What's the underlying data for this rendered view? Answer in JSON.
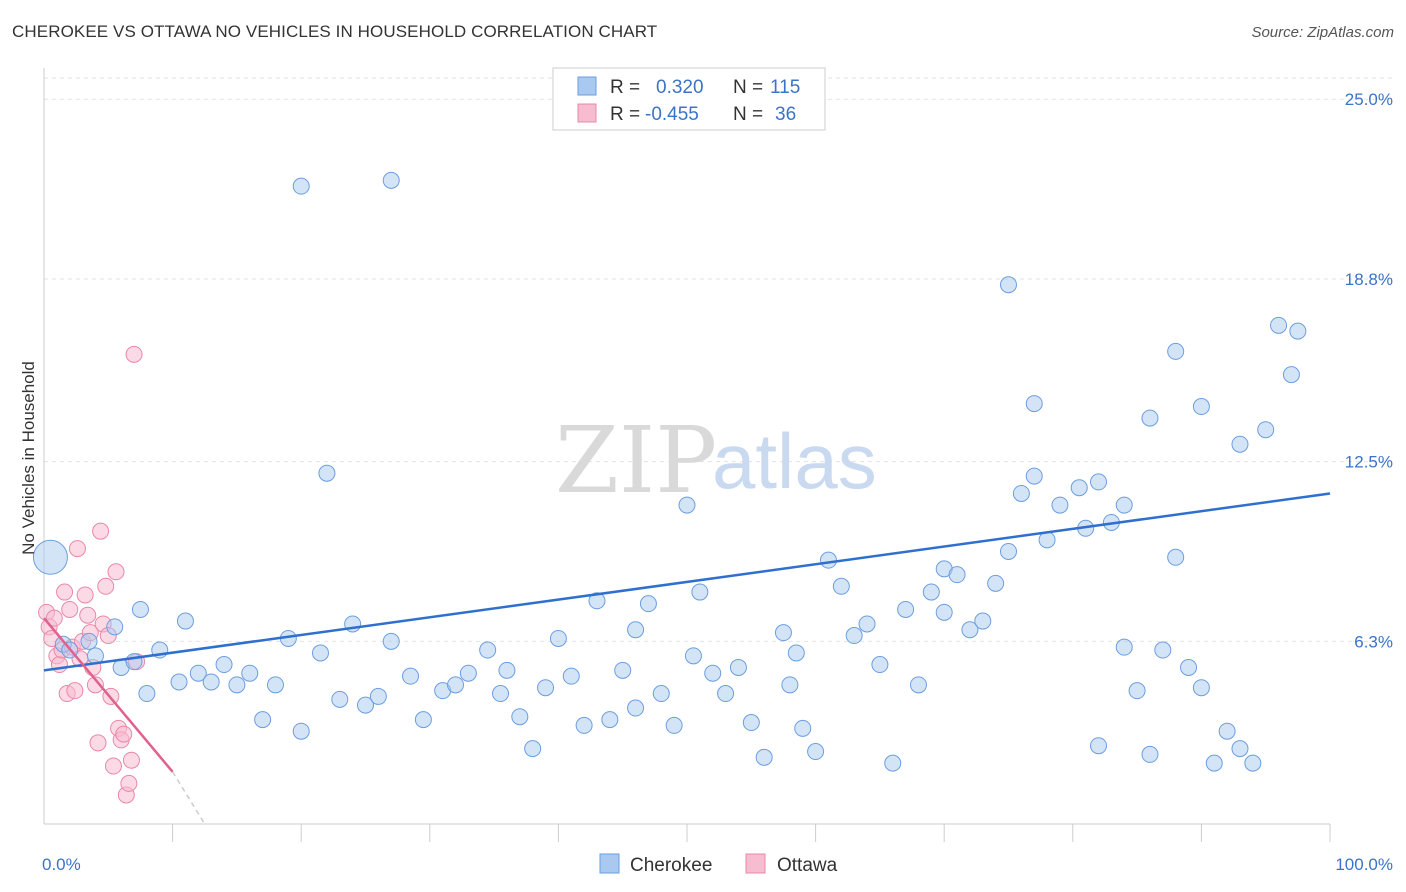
{
  "title": "CHEROKEE VS OTTAWA NO VEHICLES IN HOUSEHOLD CORRELATION CHART",
  "source": "Source: ZipAtlas.com",
  "watermark": {
    "zip": "ZIP",
    "atlas": "atlas"
  },
  "legend": {
    "r_label": "R =",
    "n_label": "N =",
    "rows": [
      {
        "name": "Cherokee",
        "r": "0.320",
        "n": "115",
        "fill": "#a9c9f0",
        "stroke": "#6b9ee0"
      },
      {
        "name": "Ottawa",
        "r": "-0.455",
        "n": "36",
        "fill": "#f7bcd0",
        "stroke": "#e888a8"
      }
    ]
  },
  "bottom_legend": [
    "Cherokee",
    "Ottawa"
  ],
  "colors": {
    "blue_line": "#2f6fcf",
    "pink_line": "#e0608e",
    "blue_dot": "#a9c9f0",
    "pink_dot": "#f7bcd0"
  },
  "chart_data": {
    "type": "scatter",
    "title": "CHEROKEE VS OTTAWA NO VEHICLES IN HOUSEHOLD CORRELATION CHART",
    "xlabel": "",
    "ylabel": "No Vehicles in Household",
    "xlim": [
      0,
      100
    ],
    "ylim": [
      0,
      25.8
    ],
    "x_tick_labels": [
      "0.0%",
      "100.0%"
    ],
    "y_ticks": [
      6.3,
      12.5,
      18.8,
      25.0
    ],
    "y_tick_labels": [
      "6.3%",
      "12.5%",
      "18.8%",
      "25.0%"
    ],
    "grid": true,
    "series": [
      {
        "name": "Cherokee",
        "points": [
          [
            0.5,
            9.2
          ],
          [
            1.5,
            6.2
          ],
          [
            2.0,
            6.0
          ],
          [
            3.5,
            6.3
          ],
          [
            4.0,
            5.8
          ],
          [
            5.5,
            6.8
          ],
          [
            6.0,
            5.4
          ],
          [
            7.0,
            5.6
          ],
          [
            7.5,
            7.4
          ],
          [
            8.0,
            4.5
          ],
          [
            9.0,
            6.0
          ],
          [
            10.5,
            4.9
          ],
          [
            11.0,
            7.0
          ],
          [
            12.0,
            5.2
          ],
          [
            13.0,
            4.9
          ],
          [
            14.0,
            5.5
          ],
          [
            15.0,
            4.8
          ],
          [
            16.0,
            5.2
          ],
          [
            17.0,
            3.6
          ],
          [
            18.0,
            4.8
          ],
          [
            19.0,
            6.4
          ],
          [
            20.0,
            3.2
          ],
          [
            21.5,
            5.9
          ],
          [
            22.0,
            12.1
          ],
          [
            23.0,
            4.3
          ],
          [
            24.0,
            6.9
          ],
          [
            25.0,
            4.1
          ],
          [
            26.0,
            4.4
          ],
          [
            27.0,
            6.3
          ],
          [
            28.5,
            5.1
          ],
          [
            29.5,
            3.6
          ],
          [
            31.0,
            4.6
          ],
          [
            32.0,
            4.8
          ],
          [
            33.0,
            5.2
          ],
          [
            34.5,
            6.0
          ],
          [
            35.5,
            4.5
          ],
          [
            36.0,
            5.3
          ],
          [
            37.0,
            3.7
          ],
          [
            38.0,
            2.6
          ],
          [
            39.0,
            4.7
          ],
          [
            40.0,
            6.4
          ],
          [
            41.0,
            5.1
          ],
          [
            42.0,
            3.4
          ],
          [
            43.0,
            7.7
          ],
          [
            44.0,
            3.6
          ],
          [
            45.0,
            5.3
          ],
          [
            46.0,
            4.0
          ],
          [
            47.0,
            7.6
          ],
          [
            48.0,
            4.5
          ],
          [
            49.0,
            3.4
          ],
          [
            50.5,
            5.8
          ],
          [
            51.0,
            8.0
          ],
          [
            52.0,
            5.2
          ],
          [
            53.0,
            4.5
          ],
          [
            54.0,
            5.4
          ],
          [
            55.0,
            3.5
          ],
          [
            56.0,
            2.3
          ],
          [
            57.5,
            6.6
          ],
          [
            58.5,
            5.9
          ],
          [
            59.0,
            3.3
          ],
          [
            60.0,
            2.5
          ],
          [
            61.0,
            9.1
          ],
          [
            62.0,
            8.2
          ],
          [
            63.0,
            6.5
          ],
          [
            64.0,
            6.9
          ],
          [
            65.0,
            5.5
          ],
          [
            66.0,
            2.1
          ],
          [
            67.0,
            7.4
          ],
          [
            68.0,
            4.8
          ],
          [
            69.0,
            8.0
          ],
          [
            70.0,
            8.8
          ],
          [
            71.0,
            8.6
          ],
          [
            72.0,
            6.7
          ],
          [
            73.0,
            7.0
          ],
          [
            74.0,
            8.3
          ],
          [
            75.0,
            9.4
          ],
          [
            76.0,
            11.4
          ],
          [
            77.0,
            12.0
          ],
          [
            78.0,
            9.8
          ],
          [
            79.0,
            11.0
          ],
          [
            80.5,
            11.6
          ],
          [
            81.0,
            10.2
          ],
          [
            82.0,
            2.7
          ],
          [
            83.0,
            10.4
          ],
          [
            84.0,
            6.1
          ],
          [
            85.0,
            4.6
          ],
          [
            86.0,
            2.4
          ],
          [
            87.0,
            6.0
          ],
          [
            88.0,
            9.2
          ],
          [
            89.0,
            5.4
          ],
          [
            90.0,
            4.7
          ],
          [
            91.0,
            2.1
          ],
          [
            92.0,
            3.2
          ],
          [
            93.0,
            2.6
          ],
          [
            94.0,
            2.1
          ],
          [
            95.0,
            13.6
          ],
          [
            96.0,
            17.2
          ],
          [
            97.0,
            15.5
          ],
          [
            97.5,
            17.0
          ],
          [
            20.0,
            22.0
          ],
          [
            27.0,
            22.2
          ],
          [
            46.0,
            6.7
          ],
          [
            50.0,
            11.0
          ],
          [
            58.0,
            4.8
          ],
          [
            70.0,
            7.3
          ],
          [
            75.0,
            18.6
          ],
          [
            77.0,
            14.5
          ],
          [
            82.0,
            11.8
          ],
          [
            84.0,
            11.0
          ],
          [
            86.0,
            14.0
          ],
          [
            88.0,
            16.3
          ],
          [
            90.0,
            14.4
          ],
          [
            93.0,
            13.1
          ]
        ]
      },
      {
        "name": "Ottawa",
        "points": [
          [
            0.2,
            7.3
          ],
          [
            0.4,
            6.8
          ],
          [
            0.6,
            6.4
          ],
          [
            0.8,
            7.1
          ],
          [
            1.0,
            5.8
          ],
          [
            1.2,
            5.5
          ],
          [
            1.4,
            6.0
          ],
          [
            1.6,
            8.0
          ],
          [
            1.8,
            4.5
          ],
          [
            2.0,
            7.4
          ],
          [
            2.2,
            6.1
          ],
          [
            2.4,
            4.6
          ],
          [
            2.6,
            9.5
          ],
          [
            2.8,
            5.7
          ],
          [
            3.0,
            6.3
          ],
          [
            3.2,
            7.9
          ],
          [
            3.4,
            7.2
          ],
          [
            3.6,
            6.6
          ],
          [
            3.8,
            5.4
          ],
          [
            4.0,
            4.8
          ],
          [
            4.2,
            2.8
          ],
          [
            4.4,
            10.1
          ],
          [
            4.6,
            6.9
          ],
          [
            4.8,
            8.2
          ],
          [
            5.0,
            6.5
          ],
          [
            5.2,
            4.4
          ],
          [
            5.4,
            2.0
          ],
          [
            5.6,
            8.7
          ],
          [
            5.8,
            3.3
          ],
          [
            6.0,
            2.9
          ],
          [
            6.2,
            3.1
          ],
          [
            6.4,
            1.0
          ],
          [
            6.6,
            1.4
          ],
          [
            6.8,
            2.2
          ],
          [
            7.0,
            16.2
          ],
          [
            7.2,
            5.6
          ]
        ]
      }
    ],
    "trendlines": [
      {
        "series": "Cherokee",
        "x": [
          0,
          100
        ],
        "y": [
          5.3,
          11.4
        ]
      },
      {
        "series": "Ottawa",
        "x": [
          0,
          10
        ],
        "y": [
          7.1,
          1.8
        ],
        "dashed_extension_to": [
          12.5,
          0
        ]
      }
    ]
  }
}
